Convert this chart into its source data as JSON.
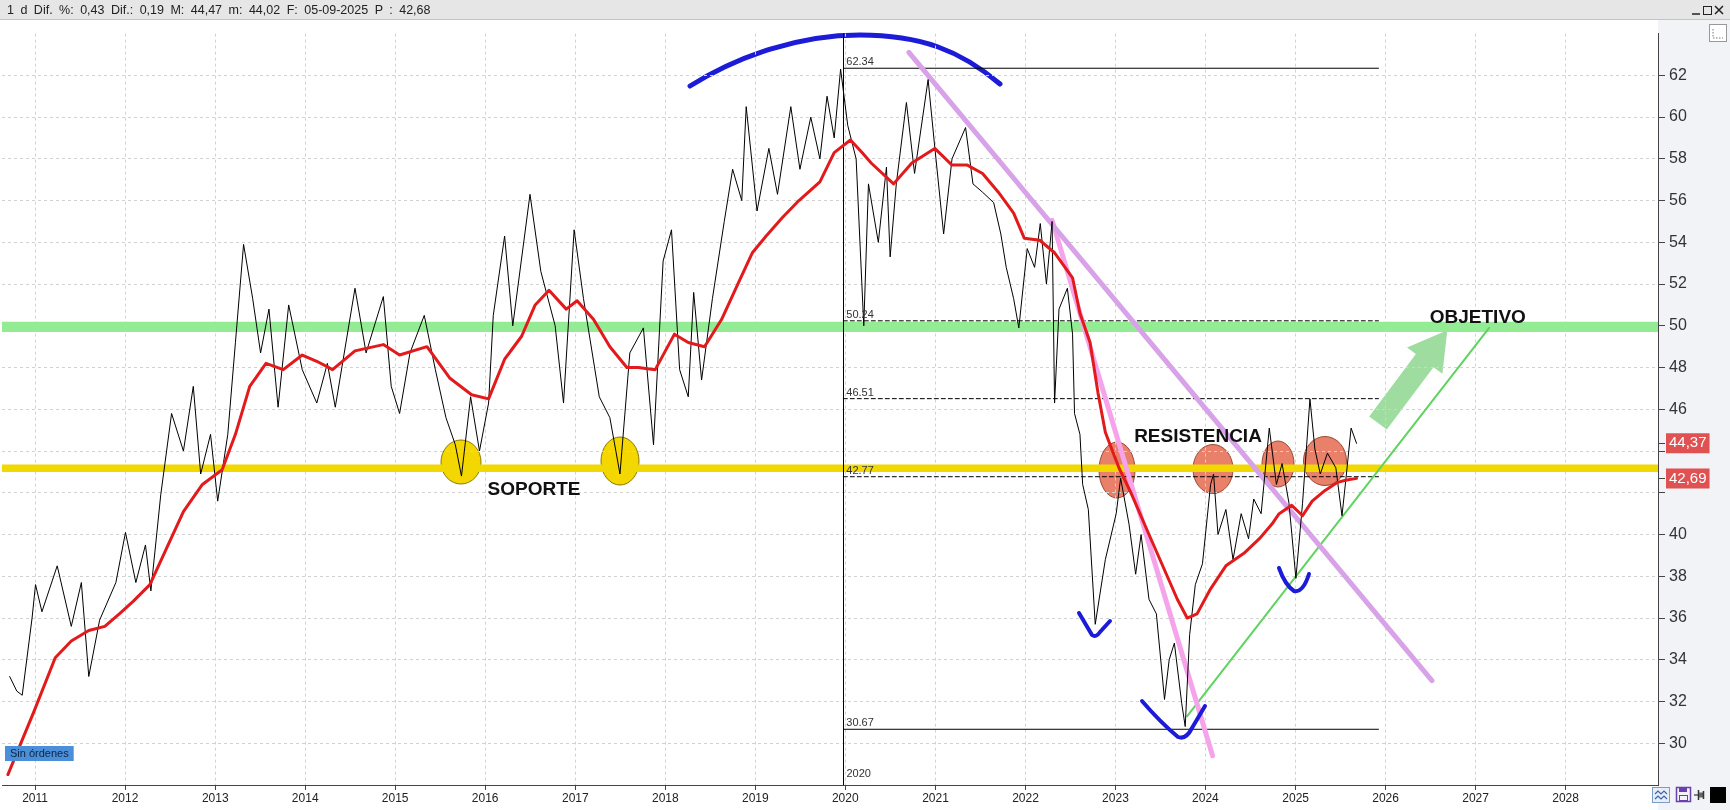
{
  "chart_data": {
    "type": "line",
    "title": "1 d Dif. %: 0,43 Dif.: 0,19 M: 44,47 m: 44,02 F: 05-09-2025 P : 42,68",
    "xlim": [
      "2010-08-20",
      "2029-01-10"
    ],
    "xticks": [
      "2011",
      "2012",
      "2013",
      "2014",
      "2015",
      "2016",
      "2017",
      "2018",
      "2019",
      "2020",
      "2021",
      "2022",
      "2023",
      "2024",
      "2025",
      "2026",
      "2027",
      "2028"
    ],
    "ylim": [
      28,
      64
    ],
    "yticks": [
      30,
      32,
      34,
      36,
      38,
      40,
      {
        "value": 42,
        "label": null
      },
      {
        "value": 42.69,
        "label": "42,69"
      },
      {
        "value": 44,
        "label": null
      },
      {
        "value": 44.37,
        "label": "44,37"
      },
      46,
      48,
      50,
      52,
      54,
      56,
      58,
      60,
      62
    ],
    "grid": true,
    "marker": "none",
    "series": [
      {
        "color": "#e31a1c",
        "x": [
          "2010-09-13",
          "2010-12-27",
          "2011-03-24",
          "2011-05-28",
          "2011-08-07",
          "2011-10-11",
          "2011-12-09",
          "2012-02-03",
          "2012-04-11",
          "2012-06-16",
          "2012-08-25",
          "2012-11-10",
          "2013-01-29",
          "2013-03-24",
          "2013-05-21",
          "2013-07-26",
          "2013-10-04",
          "2013-12-20",
          "2014-02-17",
          "2014-04-22",
          "2014-07-22",
          "2014-11-14",
          "2015-01-19",
          "2015-05-10",
          "2015-08-10",
          "2015-11-07",
          "2016-01-15",
          "2016-03-20",
          "2016-05-28",
          "2016-07-22",
          "2016-09-16",
          "2016-11-25",
          "2017-01-08",
          "2017-03-16",
          "2017-05-21",
          "2017-07-29",
          "2017-09-13",
          "2017-11-21",
          "2018-02-07",
          "2018-04-04",
          "2018-06-09",
          "2018-08-17",
          "2018-10-22",
          "2018-12-20",
          "2019-02-14",
          "2019-04-22",
          "2019-06-27",
          "2019-09-20",
          "2019-11-17",
          "2020-01-22",
          "2020-03-09",
          "2020-04-15",
          "2020-07-15",
          "2020-09-27",
          "2020-12-29",
          "2021-03-09",
          "2021-05-10",
          "2021-07-11",
          "2021-09-13",
          "2021-11-14",
          "2021-12-27",
          "2022-02-28",
          "2022-04-29",
          "2022-07-11",
          "2022-08-10",
          "2022-09-20",
          "2022-10-22",
          "2022-11-21",
          "2023-01-15",
          "2023-03-05",
          "2023-05-06",
          "2023-07-08",
          "2023-09-09",
          "2023-10-19",
          "2023-11-28",
          "2024-01-22",
          "2024-03-24",
          "2024-06-05",
          "2024-08-07",
          "2024-09-27",
          "2024-10-26",
          "2024-12-16",
          "2025-01-29",
          "2025-03-09",
          "2025-04-29",
          "2025-06-20",
          "2025-07-22",
          "2025-09-05"
        ],
        "values": [
          28.5,
          31.5,
          34.1,
          34.9,
          35.4,
          35.6,
          36.2,
          36.8,
          37.6,
          39.3,
          41.1,
          42.4,
          43.1,
          44.8,
          47.1,
          48.2,
          47.9,
          48.6,
          48.3,
          47.9,
          48.8,
          49.1,
          48.6,
          49.0,
          47.5,
          46.7,
          46.5,
          48.4,
          49.5,
          51.0,
          51.7,
          50.8,
          51.2,
          50.3,
          49.0,
          48.0,
          48.0,
          47.9,
          49.6,
          49.2,
          49.0,
          50.3,
          52.0,
          53.5,
          54.3,
          55.2,
          56.0,
          56.9,
          58.3,
          58.9,
          58.3,
          57.8,
          56.8,
          57.8,
          58.5,
          57.7,
          57.7,
          57.3,
          56.4,
          55.4,
          54.2,
          54.1,
          53.5,
          52.3,
          50.6,
          49.2,
          46.8,
          44.9,
          43.2,
          42.0,
          40.3,
          38.6,
          36.9,
          36.0,
          36.2,
          37.4,
          38.5,
          39.1,
          39.8,
          40.5,
          41.0,
          41.4,
          40.9,
          41.6,
          42.1,
          42.5,
          42.6,
          42.69
        ]
      },
      {
        "color": "#000000",
        "x": [
          "2010-09-20",
          "2010-10-19",
          "2010-11-10",
          "2010-12-20",
          "2011-01-03",
          "2011-01-29",
          "2011-04-01",
          "2011-05-28",
          "2011-07-08",
          "2011-08-07",
          "2011-09-20",
          "2011-11-25",
          "2012-01-03",
          "2012-02-14",
          "2012-03-24",
          "2012-04-15",
          "2012-05-25",
          "2012-07-08",
          "2012-08-25",
          "2012-10-04",
          "2012-11-03",
          "2012-12-13",
          "2013-01-11",
          "2013-02-21",
          "2013-03-24",
          "2013-04-26",
          "2013-06-02",
          "2013-07-04",
          "2013-08-07",
          "2013-09-13",
          "2013-10-26",
          "2013-12-20",
          "2014-02-17",
          "2014-04-01",
          "2014-05-03",
          "2014-07-22",
          "2014-09-05",
          "2014-11-14",
          "2014-12-16",
          "2015-01-19",
          "2015-03-02",
          "2015-04-29",
          "2015-06-13",
          "2015-07-26",
          "2015-09-02",
          "2015-09-27",
          "2015-11-03",
          "2015-12-09",
          "2016-01-15",
          "2016-02-03",
          "2016-03-20",
          "2016-04-22",
          "2016-07-01",
          "2016-08-14",
          "2016-10-11",
          "2016-11-14",
          "2016-12-27",
          "2017-02-03",
          "2017-04-08",
          "2017-05-21",
          "2017-07-01",
          "2017-08-10",
          "2017-10-04",
          "2017-11-14",
          "2017-12-23",
          "2018-01-26",
          "2018-02-28",
          "2018-04-04",
          "2018-04-26",
          "2018-05-28",
          "2018-07-11",
          "2018-08-28",
          "2018-10-01",
          "2018-11-07",
          "2018-11-25",
          "2019-01-08",
          "2019-02-25",
          "2019-04-01",
          "2019-05-25",
          "2019-07-01",
          "2019-08-14",
          "2019-09-20",
          "2019-10-19",
          "2019-11-17",
          "2019-12-13",
          "2020-01-11",
          "2020-02-14",
          "2020-03-16",
          "2020-04-04",
          "2020-05-14",
          "2020-06-16",
          "2020-07-01",
          "2020-07-26",
          "2020-09-05",
          "2020-10-08",
          "2020-12-02",
          "2020-12-27",
          "2021-02-03",
          "2021-03-09",
          "2021-05-03",
          "2021-06-02",
          "2021-07-11",
          "2021-08-25",
          "2021-09-23",
          "2021-10-15",
          "2021-11-14",
          "2021-12-05",
          "2022-01-08",
          "2022-02-07",
          "2022-03-02",
          "2022-03-27",
          "2022-04-19",
          "2022-04-29",
          "2022-05-17",
          "2022-06-20",
          "2022-07-11",
          "2022-07-19",
          "2022-08-10",
          "2022-08-21",
          "2022-09-13",
          "2022-10-11",
          "2022-11-21",
          "2023-01-04",
          "2023-01-22",
          "2023-02-25",
          "2023-03-24",
          "2023-04-15",
          "2023-05-17",
          "2023-06-16",
          "2023-07-19",
          "2023-08-07",
          "2023-08-28",
          "2023-09-27",
          "2023-10-11",
          "2023-10-29",
          "2023-11-21",
          "2023-12-20",
          "2024-01-22",
          "2024-02-03",
          "2024-02-21",
          "2024-03-24",
          "2024-04-22",
          "2024-05-25",
          "2024-06-24",
          "2024-07-15",
          "2024-08-14",
          "2024-09-16",
          "2024-10-15",
          "2024-11-07",
          "2024-12-05",
          "2025-01-02",
          "2025-01-29",
          "2025-02-28",
          "2025-03-20",
          "2025-04-11",
          "2025-05-10",
          "2025-06-13",
          "2025-07-08",
          "2025-07-26",
          "2025-08-14",
          "2025-09-05"
        ],
        "values": [
          33.2,
          32.5,
          32.3,
          36.0,
          37.6,
          36.3,
          38.5,
          35.6,
          37.7,
          33.2,
          35.9,
          37.7,
          40.1,
          37.7,
          39.5,
          37.3,
          41.9,
          45.8,
          44.0,
          47.1,
          42.9,
          44.8,
          41.6,
          44.8,
          49.2,
          53.9,
          51.3,
          48.7,
          50.8,
          46.1,
          51.0,
          47.9,
          46.3,
          48.2,
          46.1,
          51.8,
          48.7,
          51.4,
          47.1,
          45.8,
          48.7,
          50.5,
          47.9,
          45.6,
          44.3,
          42.8,
          46.6,
          44.0,
          46.3,
          50.5,
          54.3,
          50.0,
          56.3,
          52.6,
          50.0,
          46.3,
          54.6,
          51.3,
          46.6,
          45.6,
          42.9,
          48.7,
          49.9,
          44.3,
          53.1,
          54.6,
          47.9,
          46.6,
          51.6,
          47.4,
          51.3,
          55.0,
          57.5,
          56.0,
          60.5,
          55.5,
          58.5,
          56.3,
          60.5,
          57.5,
          60.0,
          58.0,
          61.0,
          59.0,
          62.3,
          59.6,
          58.0,
          50.0,
          56.8,
          54.0,
          57.6,
          53.3,
          56.8,
          60.7,
          57.3,
          61.8,
          58.8,
          54.4,
          58.0,
          59.5,
          56.8,
          56.4,
          55.9,
          54.4,
          52.8,
          51.3,
          49.9,
          53.7,
          52.8,
          54.9,
          52.0,
          55.0,
          46.3,
          50.8,
          51.8,
          49.6,
          45.8,
          44.8,
          42.4,
          41.2,
          35.7,
          38.8,
          41.0,
          42.7,
          40.5,
          38.1,
          40.0,
          36.9,
          36.2,
          32.1,
          34.0,
          34.8,
          31.9,
          30.8,
          35.2,
          37.6,
          38.6,
          42.4,
          42.9,
          40.0,
          41.2,
          38.8,
          41.0,
          39.8,
          41.7,
          41.0,
          45.1,
          42.4,
          43.4,
          41.5,
          37.9,
          41.5,
          46.5,
          44.1,
          42.9,
          43.9,
          43.2,
          40.9,
          42.9,
          45.1,
          44.37
        ]
      },
      {
        "color": "#d8a2e8",
        "x": [
          "2020-09-15",
          "2026-07-08"
        ],
        "values": [
          63.1,
          33.0
        ]
      },
      {
        "color": "#f5a3ea",
        "x": [
          "2022-04-19",
          "2024-01-30"
        ],
        "values": [
          55.05,
          29.4
        ]
      },
      {
        "color": "#5fd35f",
        "x": [
          "2023-10-19",
          "2027-02-25"
        ],
        "values": [
          31.3,
          49.9
        ]
      },
      {
        "color": "#000000",
        "line_style": "solid",
        "x": [
          "2019-12-24",
          "2025-12-03"
        ],
        "values": [
          62.34,
          62.34
        ],
        "value_labels": [
          "62.34",
          null
        ]
      },
      {
        "color": "#000000",
        "line_style": "dashed",
        "x": [
          "2019-12-24",
          "2025-12-03"
        ],
        "values": [
          50.24,
          50.24
        ],
        "value_labels": [
          "50.24",
          null
        ]
      },
      {
        "color": "#000000",
        "line_style": "dashed",
        "x": [
          "2019-12-24",
          "2025-12-03"
        ],
        "values": [
          46.51,
          46.51
        ],
        "value_labels": [
          "46.51",
          null
        ]
      },
      {
        "color": "#000000",
        "line_style": "dashed",
        "x": [
          "2019-12-24",
          "2025-12-03"
        ],
        "values": [
          42.77,
          42.77
        ],
        "value_labels": [
          "42.77",
          null
        ]
      },
      {
        "color": "#000000",
        "line_style": "solid",
        "x": [
          "2019-12-24",
          "2025-12-03"
        ],
        "values": [
          30.67,
          30.67
        ],
        "value_labels": [
          "30.67",
          null
        ]
      }
    ],
    "bands": [
      {
        "axis": "y",
        "from": 49.7,
        "to": 50.2,
        "color": "#93ec93"
      },
      {
        "axis": "y",
        "from": 43.0,
        "to": 43.35,
        "color": "#f0d800"
      }
    ],
    "ref_lines": [
      {
        "axis": "x",
        "value": "2019-12-24",
        "label": "2020",
        "color": "#000000"
      }
    ],
    "annotations": [
      "SOPORTE",
      "RESISTENCIA",
      {
        "text": "OBJETIVO",
        "x": "2027-01-10",
        "y": 50.4
      },
      "Sin órdenes"
    ]
  }
}
